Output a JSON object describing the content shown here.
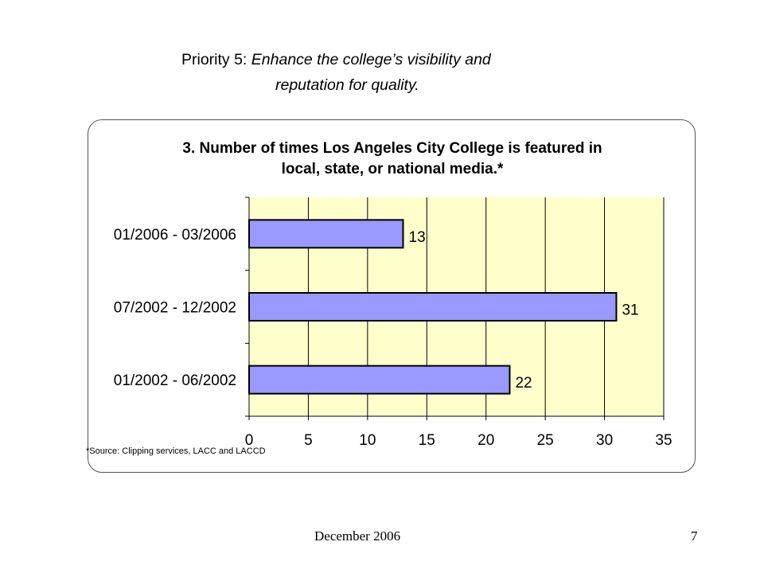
{
  "heading": {
    "prefix": "Priority 5:  ",
    "line1_italic": "Enhance the college’s visibility and",
    "line2": "reputation for quality."
  },
  "footer": {
    "date": "December 2006",
    "page": "7"
  },
  "colors": {
    "plot_background": "#ffffcc",
    "bar_fill": "#9999ff",
    "bar_stroke": "#000000",
    "gridline": "#000000"
  },
  "chart_data": {
    "type": "bar",
    "orientation": "horizontal",
    "title_line1": "3.  Number of times Los Angeles City College is featured in",
    "title_line2": "local, state, or national media.*",
    "categories": [
      "01/2006 - 03/2006",
      "07/2002 - 12/2002",
      "01/2002 - 06/2002"
    ],
    "values": [
      13,
      31,
      22
    ],
    "xlim": [
      0,
      35
    ],
    "xticks": [
      0,
      5,
      10,
      15,
      20,
      25,
      30,
      35
    ],
    "grid": true,
    "legend": false,
    "data_labels": true,
    "source_note": "*Source:  Clipping services, LACC and LACCD"
  }
}
